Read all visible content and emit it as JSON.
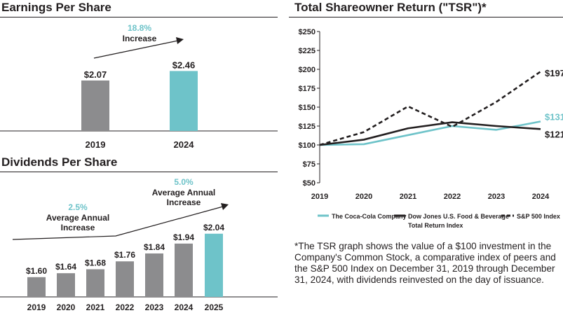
{
  "colors": {
    "gray_bar": "#8c8c8e",
    "teal": "#6ec3c9",
    "dark": "#231f20"
  },
  "chart_data": [
    {
      "type": "bar",
      "title": "Earnings Per Share",
      "categories": [
        "2019",
        "2024"
      ],
      "values": [
        2.07,
        2.46
      ],
      "value_labels": [
        "$2.07",
        "$2.46"
      ],
      "annotation": {
        "pct": "18.8%",
        "text": "Increase"
      },
      "highlight_index": 1
    },
    {
      "type": "bar",
      "title": "Dividends Per Share",
      "categories": [
        "2019",
        "2020",
        "2021",
        "2022",
        "2023",
        "2024",
        "2025"
      ],
      "values": [
        1.6,
        1.64,
        1.68,
        1.76,
        1.84,
        1.94,
        2.04
      ],
      "value_labels": [
        "$1.60",
        "$1.64",
        "$1.68",
        "$1.76",
        "$1.84",
        "$1.94",
        "$2.04"
      ],
      "highlight_index": 6,
      "annotations": [
        {
          "pct": "2.5%",
          "line1": "Average Annual",
          "line2": "Increase"
        },
        {
          "pct": "5.0%",
          "line1": "Average Annual",
          "line2": "Increase"
        }
      ]
    },
    {
      "type": "line",
      "title": "Total Shareowner Return (\"TSR\")*",
      "x": [
        "2019",
        "2020",
        "2021",
        "2022",
        "2023",
        "2024"
      ],
      "ylim": [
        50,
        250
      ],
      "yticks": [
        50,
        75,
        100,
        125,
        150,
        175,
        200,
        225,
        250
      ],
      "ytick_labels": [
        "$50",
        "$75",
        "$100",
        "$125",
        "$150",
        "$175",
        "$200",
        "$225",
        "$250"
      ],
      "series": [
        {
          "name": "The Coca-Cola Company",
          "values": [
            100,
            101,
            113,
            125,
            120,
            131
          ],
          "end_label": "$131",
          "style": "teal"
        },
        {
          "name": "Dow Jones U.S. Food & Beverage Total Return Index",
          "name_line1": "Dow Jones U.S. Food & Beverage",
          "name_line2": "Total Return Index",
          "values": [
            100,
            107,
            122,
            130,
            125,
            121
          ],
          "end_label": "$121",
          "style": "solid-dark"
        },
        {
          "name": "S&P 500 Index",
          "values": [
            100,
            117,
            151,
            124,
            157,
            197
          ],
          "end_label": "$197",
          "style": "dashed-dark"
        }
      ]
    }
  ],
  "footnote": "*The TSR graph shows the value of a $100 investment in the Company's Common Stock, a comparative index of peers and the S&P 500 Index on December 31, 2019 through December 31, 2024, with dividends reinvested on the day of issuance."
}
